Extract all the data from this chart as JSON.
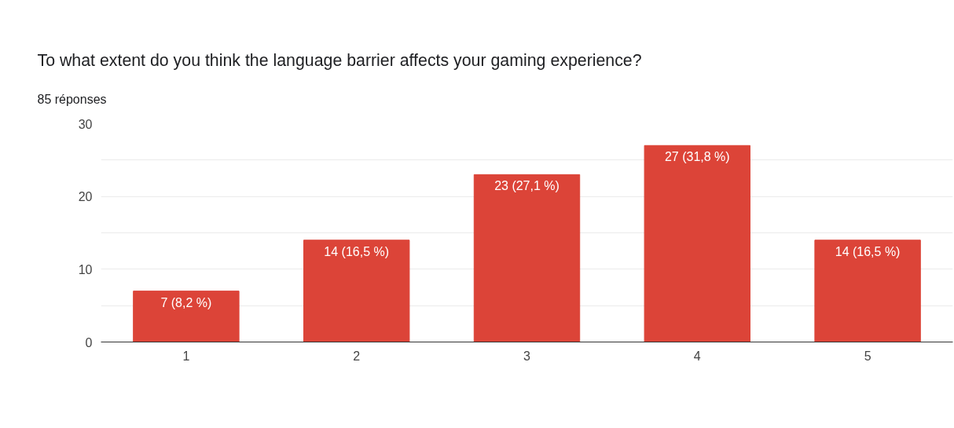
{
  "chart_data": {
    "type": "bar",
    "title": "To what extent do you think the language barrier affects your gaming experience?",
    "subtitle": "85 réponses",
    "categories": [
      "1",
      "2",
      "3",
      "4",
      "5"
    ],
    "values": [
      7,
      14,
      23,
      27,
      14
    ],
    "color": "#dc4438",
    "value_labels": [
      "7 (8,2 %)",
      "14 (16,5 %)",
      "23 (27,1 %)",
      "27 (31,8 %)",
      "14 (16,5 %)"
    ],
    "ylim": [
      0,
      30
    ],
    "yticks": [
      0,
      {
        "value": 5,
        "label": null
      },
      10,
      {
        "value": 15,
        "label": null
      },
      20,
      {
        "value": 25,
        "label": null
      },
      30
    ],
    "grid": "y"
  }
}
